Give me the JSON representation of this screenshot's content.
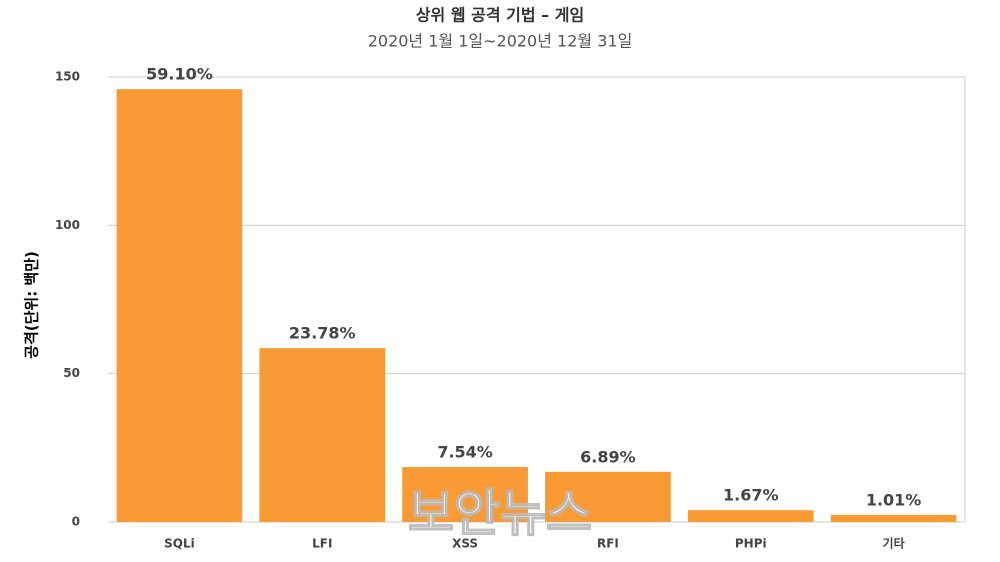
{
  "chart_data": {
    "type": "bar",
    "title": "상위 웹 공격 기법 – 게임",
    "subtitle": "2020년 1월 1일~2020년 12월 31일",
    "y_label": "공격(단위: 백만)",
    "categories": [
      "SQLi",
      "LFI",
      "XSS",
      "RFI",
      "PHPi",
      "기타"
    ],
    "values": [
      145.9,
      58.6,
      18.5,
      16.9,
      4.0,
      2.4
    ],
    "share_labels": [
      "59.10%",
      "23.78%",
      "7.54%",
      "6.89%",
      "1.67%",
      "1.01%"
    ],
    "color": "#f99a34",
    "ylim": [
      0,
      150
    ],
    "yticks": [
      0,
      50,
      100,
      150
    ],
    "grid": true,
    "watermark": "보안뉴스"
  }
}
